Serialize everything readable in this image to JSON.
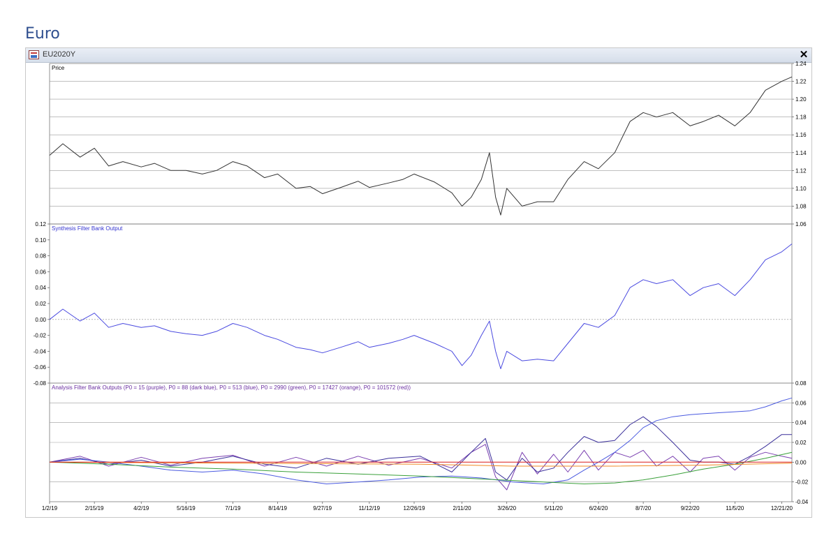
{
  "heading": "Euro",
  "window": {
    "title": "EU2020Y"
  },
  "chart_data": [
    {
      "type": "line",
      "title": "Price",
      "ylim": [
        1.06,
        1.24
      ],
      "yticks": [
        1.06,
        1.08,
        1.1,
        1.12,
        1.14,
        1.16,
        1.18,
        1.2,
        1.22,
        1.24
      ],
      "ytick_labels": [
        "1.06",
        "1.08",
        "1.10",
        "1.12",
        "1.14",
        "1.16",
        "1.18",
        "1.20",
        "1.22",
        "1.24"
      ],
      "axis_side": "right",
      "grid": true,
      "series": [
        {
          "color": "#333333",
          "x": [
            "2019-01-02",
            "2019-01-15",
            "2019-02-01",
            "2019-02-15",
            "2019-03-01",
            "2019-03-15",
            "2019-04-02",
            "2019-04-15",
            "2019-05-01",
            "2019-05-16",
            "2019-06-01",
            "2019-06-15",
            "2019-07-01",
            "2019-07-15",
            "2019-08-01",
            "2019-08-14",
            "2019-09-01",
            "2019-09-15",
            "2019-09-27",
            "2019-10-15",
            "2019-11-01",
            "2019-11-12",
            "2019-12-01",
            "2019-12-15",
            "2019-12-26",
            "2020-01-15",
            "2020-02-01",
            "2020-02-11",
            "2020-02-20",
            "2020-03-01",
            "2020-03-09",
            "2020-03-15",
            "2020-03-20",
            "2020-03-26",
            "2020-04-10",
            "2020-04-25",
            "2020-05-11",
            "2020-05-25",
            "2020-06-10",
            "2020-06-24",
            "2020-07-10",
            "2020-07-25",
            "2020-08-07",
            "2020-08-20",
            "2020-09-05",
            "2020-09-22",
            "2020-10-05",
            "2020-10-20",
            "2020-11-05",
            "2020-11-20",
            "2020-12-05",
            "2020-12-21",
            "2020-12-31"
          ],
          "y": [
            1.137,
            1.15,
            1.135,
            1.145,
            1.125,
            1.13,
            1.124,
            1.128,
            1.12,
            1.12,
            1.116,
            1.12,
            1.13,
            1.125,
            1.112,
            1.116,
            1.1,
            1.102,
            1.094,
            1.101,
            1.108,
            1.101,
            1.106,
            1.11,
            1.116,
            1.107,
            1.095,
            1.08,
            1.09,
            1.11,
            1.14,
            1.09,
            1.07,
            1.1,
            1.08,
            1.085,
            1.085,
            1.11,
            1.13,
            1.122,
            1.14,
            1.175,
            1.185,
            1.18,
            1.185,
            1.17,
            1.175,
            1.182,
            1.17,
            1.185,
            1.21,
            1.22,
            1.225
          ]
        }
      ]
    },
    {
      "type": "line",
      "title": "Synthesis Filter Bank Output",
      "ylim": [
        -0.08,
        0.12
      ],
      "yticks": [
        -0.08,
        -0.06,
        -0.04,
        -0.02,
        0.0,
        0.02,
        0.04,
        0.06,
        0.08,
        0.1,
        0.12
      ],
      "ytick_labels": [
        "-0.08",
        "-0.06",
        "-0.04",
        "-0.02",
        "0.00",
        "0.02",
        "0.04",
        "0.06",
        "0.08",
        "0.10",
        "0.12"
      ],
      "axis_side": "left",
      "zero_line": "dotted",
      "series": [
        {
          "color": "#4a4ae0",
          "x": [
            "2019-01-02",
            "2019-01-15",
            "2019-02-01",
            "2019-02-15",
            "2019-03-01",
            "2019-03-15",
            "2019-04-02",
            "2019-04-15",
            "2019-05-01",
            "2019-05-16",
            "2019-06-01",
            "2019-06-15",
            "2019-07-01",
            "2019-07-15",
            "2019-08-01",
            "2019-08-14",
            "2019-09-01",
            "2019-09-15",
            "2019-09-27",
            "2019-10-15",
            "2019-11-01",
            "2019-11-12",
            "2019-12-01",
            "2019-12-15",
            "2019-12-26",
            "2020-01-15",
            "2020-02-01",
            "2020-02-11",
            "2020-02-20",
            "2020-03-01",
            "2020-03-09",
            "2020-03-15",
            "2020-03-20",
            "2020-03-26",
            "2020-04-10",
            "2020-04-25",
            "2020-05-11",
            "2020-05-25",
            "2020-06-10",
            "2020-06-24",
            "2020-07-10",
            "2020-07-25",
            "2020-08-07",
            "2020-08-20",
            "2020-09-05",
            "2020-09-22",
            "2020-10-05",
            "2020-10-20",
            "2020-11-05",
            "2020-11-20",
            "2020-12-05",
            "2020-12-21",
            "2020-12-31"
          ],
          "y": [
            0.0,
            0.013,
            -0.002,
            0.008,
            -0.01,
            -0.005,
            -0.01,
            -0.008,
            -0.015,
            -0.018,
            -0.02,
            -0.015,
            -0.005,
            -0.01,
            -0.02,
            -0.025,
            -0.035,
            -0.038,
            -0.042,
            -0.035,
            -0.028,
            -0.035,
            -0.03,
            -0.025,
            -0.02,
            -0.03,
            -0.04,
            -0.058,
            -0.045,
            -0.02,
            -0.002,
            -0.04,
            -0.062,
            -0.04,
            -0.052,
            -0.05,
            -0.052,
            -0.03,
            -0.005,
            -0.01,
            0.005,
            0.04,
            0.05,
            0.045,
            0.05,
            0.03,
            0.04,
            0.045,
            0.03,
            0.05,
            0.075,
            0.085,
            0.095
          ]
        }
      ]
    },
    {
      "type": "line",
      "title": "Analysis Filter Bank Outputs (P0 = 15 (purple), P0 = 88 (dark blue), P0 = 513 (blue), P0 = 2990 (green), P0 = 17427 (orange), P0 = 101572 (red))",
      "ylim": [
        -0.04,
        0.08
      ],
      "yticks": [
        -0.04,
        -0.02,
        0.0,
        0.02,
        0.04,
        0.06,
        0.08
      ],
      "ytick_labels": [
        "-0.04",
        "-0.02",
        "0.00",
        "0.02",
        "0.04",
        "0.06",
        "0.08"
      ],
      "axis_side": "right",
      "grid": true,
      "series": [
        {
          "color": "#7a3fb0",
          "x": [
            "2019-01-02",
            "2019-02-01",
            "2019-03-01",
            "2019-04-02",
            "2019-05-01",
            "2019-06-01",
            "2019-07-01",
            "2019-08-01",
            "2019-09-01",
            "2019-10-01",
            "2019-11-01",
            "2019-12-01",
            "2020-01-01",
            "2020-02-01",
            "2020-02-20",
            "2020-03-05",
            "2020-03-15",
            "2020-03-26",
            "2020-04-10",
            "2020-04-25",
            "2020-05-11",
            "2020-05-25",
            "2020-06-10",
            "2020-06-24",
            "2020-07-10",
            "2020-07-25",
            "2020-08-07",
            "2020-08-20",
            "2020-09-05",
            "2020-09-22",
            "2020-10-05",
            "2020-10-20",
            "2020-11-05",
            "2020-11-20",
            "2020-12-05",
            "2020-12-21",
            "2020-12-31"
          ],
          "y": [
            0.0,
            0.006,
            -0.004,
            0.005,
            -0.003,
            0.004,
            0.007,
            -0.004,
            0.005,
            -0.004,
            0.006,
            -0.003,
            0.004,
            -0.006,
            0.01,
            0.018,
            -0.015,
            -0.028,
            0.01,
            -0.012,
            0.008,
            -0.01,
            0.012,
            -0.008,
            0.01,
            0.005,
            0.012,
            -0.004,
            0.006,
            -0.01,
            0.004,
            0.006,
            -0.008,
            0.005,
            0.01,
            0.006,
            0.004
          ]
        },
        {
          "color": "#3a2f9a",
          "x": [
            "2019-01-02",
            "2019-02-01",
            "2019-03-01",
            "2019-04-02",
            "2019-05-01",
            "2019-06-01",
            "2019-07-01",
            "2019-08-01",
            "2019-09-01",
            "2019-10-01",
            "2019-11-01",
            "2019-12-01",
            "2020-01-01",
            "2020-02-01",
            "2020-02-20",
            "2020-03-05",
            "2020-03-15",
            "2020-03-26",
            "2020-04-10",
            "2020-04-25",
            "2020-05-11",
            "2020-05-25",
            "2020-06-10",
            "2020-06-24",
            "2020-07-10",
            "2020-07-25",
            "2020-08-07",
            "2020-08-20",
            "2020-09-05",
            "2020-09-22",
            "2020-10-05",
            "2020-10-20",
            "2020-11-05",
            "2020-11-20",
            "2020-12-05",
            "2020-12-21",
            "2020-12-31"
          ],
          "y": [
            0.0,
            0.004,
            -0.002,
            0.002,
            -0.004,
            0.0,
            0.006,
            -0.002,
            -0.006,
            0.004,
            -0.002,
            0.004,
            0.006,
            -0.01,
            0.01,
            0.024,
            -0.01,
            -0.018,
            0.004,
            -0.01,
            -0.006,
            0.01,
            0.026,
            0.02,
            0.022,
            0.038,
            0.046,
            0.036,
            0.02,
            0.002,
            0.0,
            0.0,
            -0.002,
            0.006,
            0.016,
            0.028,
            0.028
          ]
        },
        {
          "color": "#4a5ae0",
          "x": [
            "2019-01-02",
            "2019-02-01",
            "2019-03-01",
            "2019-04-02",
            "2019-05-01",
            "2019-06-01",
            "2019-07-01",
            "2019-08-01",
            "2019-09-01",
            "2019-10-01",
            "2019-11-01",
            "2019-12-01",
            "2020-01-01",
            "2020-02-01",
            "2020-03-01",
            "2020-04-01",
            "2020-05-01",
            "2020-05-25",
            "2020-06-10",
            "2020-06-24",
            "2020-07-10",
            "2020-07-25",
            "2020-08-07",
            "2020-08-20",
            "2020-09-05",
            "2020-09-22",
            "2020-10-05",
            "2020-10-20",
            "2020-11-05",
            "2020-11-20",
            "2020-12-05",
            "2020-12-21",
            "2020-12-31"
          ],
          "y": [
            0.0,
            0.003,
            0.0,
            -0.004,
            -0.008,
            -0.01,
            -0.008,
            -0.012,
            -0.018,
            -0.022,
            -0.02,
            -0.018,
            -0.015,
            -0.014,
            -0.016,
            -0.02,
            -0.022,
            -0.018,
            -0.008,
            0.0,
            0.01,
            0.022,
            0.035,
            0.042,
            0.046,
            0.048,
            0.049,
            0.05,
            0.051,
            0.052,
            0.056,
            0.062,
            0.065
          ]
        },
        {
          "color": "#3aa03a",
          "x": [
            "2019-01-02",
            "2019-03-01",
            "2019-05-01",
            "2019-07-01",
            "2019-09-01",
            "2019-11-01",
            "2020-01-01",
            "2020-03-01",
            "2020-05-01",
            "2020-06-10",
            "2020-07-10",
            "2020-08-07",
            "2020-09-05",
            "2020-10-05",
            "2020-11-05",
            "2020-12-05",
            "2020-12-31"
          ],
          "y": [
            0.0,
            -0.002,
            -0.005,
            -0.007,
            -0.01,
            -0.012,
            -0.014,
            -0.017,
            -0.02,
            -0.022,
            -0.021,
            -0.018,
            -0.013,
            -0.007,
            -0.002,
            0.004,
            0.01
          ]
        },
        {
          "color": "#f08a24",
          "x": [
            "2019-01-02",
            "2019-07-01",
            "2020-01-01",
            "2020-04-01",
            "2020-07-10",
            "2020-10-05",
            "2020-12-31"
          ],
          "y": [
            0.0,
            -0.001,
            -0.002,
            -0.004,
            -0.004,
            -0.003,
            -0.001
          ]
        },
        {
          "color": "#e02020",
          "x": [
            "2019-01-02",
            "2019-07-01",
            "2020-01-01",
            "2020-07-10",
            "2020-12-31"
          ],
          "y": [
            0.0,
            0.0,
            0.0,
            0.0,
            0.0
          ]
        }
      ]
    }
  ],
  "x_axis": {
    "range": [
      "2019-01-02",
      "2020-12-31"
    ],
    "ticks": [
      {
        "x": "2019-01-02",
        "label": "1/2/19"
      },
      {
        "x": "2019-02-15",
        "label": "2/15/19"
      },
      {
        "x": "2019-04-02",
        "label": "4/2/19"
      },
      {
        "x": "2019-05-16",
        "label": "5/16/19"
      },
      {
        "x": "2019-07-01",
        "label": "7/1/19"
      },
      {
        "x": "2019-08-14",
        "label": "8/14/19"
      },
      {
        "x": "2019-09-27",
        "label": "9/27/19"
      },
      {
        "x": "2019-11-12",
        "label": "11/12/19"
      },
      {
        "x": "2019-12-26",
        "label": "12/26/19"
      },
      {
        "x": "2020-02-11",
        "label": "2/11/20"
      },
      {
        "x": "2020-03-26",
        "label": "3/26/20"
      },
      {
        "x": "2020-05-11",
        "label": "5/11/20"
      },
      {
        "x": "2020-06-24",
        "label": "6/24/20"
      },
      {
        "x": "2020-08-07",
        "label": "8/7/20"
      },
      {
        "x": "2020-09-22",
        "label": "9/22/20"
      },
      {
        "x": "2020-11-05",
        "label": "11/5/20"
      },
      {
        "x": "2020-12-21",
        "label": "12/21/20"
      }
    ]
  }
}
